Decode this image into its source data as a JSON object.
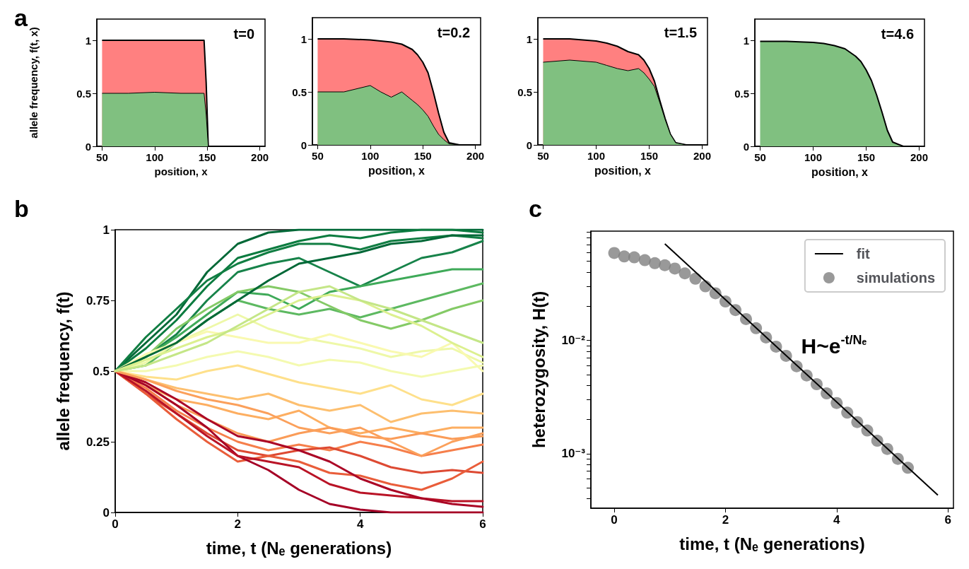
{
  "chart_data": [
    {
      "type": "area",
      "title": "t=0",
      "ylabel": "allele frequency, f(t, x)",
      "xlabel": "position, x",
      "annotations": [
        "a"
      ],
      "stacked": true,
      "xlim": [
        45,
        205
      ],
      "xticks": [
        50,
        100,
        150,
        200
      ],
      "ylim": [
        0,
        1.2
      ],
      "yticks": [
        0,
        0.5,
        1
      ],
      "x": [
        50,
        75,
        100,
        125,
        147,
        149,
        151,
        175,
        200
      ],
      "series": [
        {
          "color": "#80c080",
          "values": [
            0.5,
            0.5,
            0.51,
            0.5,
            0.5,
            0.3,
            0,
            0,
            0
          ]
        },
        {
          "color": "#ff8080",
          "values": [
            0.5,
            0.5,
            0.49,
            0.5,
            0.5,
            0.3,
            0,
            0,
            0
          ]
        }
      ]
    },
    {
      "type": "area",
      "title": "t=0.2",
      "xlabel": "position, x",
      "stacked": true,
      "xlim": [
        45,
        205
      ],
      "xticks": [
        50,
        100,
        150,
        200
      ],
      "ylim": [
        0,
        1.2
      ],
      "yticks": [
        0,
        0.5,
        1
      ],
      "x": [
        50,
        75,
        100,
        110,
        120,
        130,
        140,
        145,
        150,
        155,
        160,
        165,
        170,
        175,
        185,
        200
      ],
      "series": [
        {
          "color": "#80c080",
          "values": [
            0.5,
            0.5,
            0.56,
            0.5,
            0.45,
            0.5,
            0.42,
            0.38,
            0.33,
            0.27,
            0.18,
            0.1,
            0.05,
            0.01,
            0,
            0
          ]
        },
        {
          "color": "#ff8080",
          "values": [
            0.5,
            0.5,
            0.43,
            0.48,
            0.52,
            0.45,
            0.48,
            0.47,
            0.45,
            0.41,
            0.32,
            0.2,
            0.07,
            0.01,
            0,
            0
          ]
        }
      ]
    },
    {
      "type": "area",
      "title": "t=1.5",
      "xlabel": "position, x",
      "stacked": true,
      "xlim": [
        45,
        205
      ],
      "xticks": [
        50,
        100,
        150,
        200
      ],
      "ylim": [
        0,
        1.2
      ],
      "yticks": [
        0,
        0.5,
        1
      ],
      "x": [
        50,
        75,
        100,
        110,
        120,
        130,
        140,
        145,
        150,
        155,
        160,
        165,
        170,
        175,
        185,
        200
      ],
      "series": [
        {
          "color": "#80c080",
          "values": [
            0.78,
            0.8,
            0.78,
            0.75,
            0.72,
            0.7,
            0.72,
            0.68,
            0.62,
            0.55,
            0.4,
            0.24,
            0.1,
            0.02,
            0,
            0
          ]
        },
        {
          "color": "#ff8080",
          "values": [
            0.22,
            0.2,
            0.2,
            0.21,
            0.21,
            0.18,
            0.13,
            0.12,
            0.1,
            0.05,
            0.02,
            0.01,
            0,
            0,
            0,
            0
          ]
        }
      ]
    },
    {
      "type": "area",
      "title": "t=4.6",
      "xlabel": "position, x",
      "stacked": true,
      "xlim": [
        45,
        205
      ],
      "xticks": [
        50,
        100,
        150,
        200
      ],
      "ylim": [
        0,
        1.2
      ],
      "yticks": [
        0,
        0.5,
        1
      ],
      "x": [
        50,
        75,
        100,
        110,
        120,
        130,
        140,
        145,
        150,
        155,
        160,
        165,
        170,
        175,
        185,
        200
      ],
      "series": [
        {
          "color": "#80c080",
          "values": [
            0.99,
            0.99,
            0.98,
            0.97,
            0.95,
            0.92,
            0.85,
            0.8,
            0.72,
            0.62,
            0.48,
            0.32,
            0.15,
            0.04,
            0,
            0
          ]
        }
      ]
    },
    {
      "type": "line",
      "xlabel": "time, t (Nₑ generations)",
      "ylabel": "allele frequency, f(t)",
      "annotations": [
        "b"
      ],
      "xlim": [
        0,
        6
      ],
      "xticks": [
        0,
        2,
        4,
        6
      ],
      "ylim": [
        0,
        1
      ],
      "yticks": [
        0,
        0.25,
        0.5,
        0.75,
        1
      ],
      "x": [
        0,
        0.5,
        1,
        1.5,
        2,
        2.5,
        3,
        3.5,
        4,
        4.5,
        5,
        5.5,
        6
      ],
      "series": [
        {
          "color": "#006837",
          "values": [
            0.5,
            0.6,
            0.7,
            0.85,
            0.95,
            0.99,
            1,
            1,
            1,
            1,
            1,
            1,
            1
          ]
        },
        {
          "color": "#0a7b3f",
          "values": [
            0.5,
            0.58,
            0.68,
            0.8,
            0.9,
            0.93,
            0.96,
            0.98,
            0.97,
            0.99,
            1,
            1,
            0.99
          ]
        },
        {
          "color": "#117e43",
          "values": [
            0.5,
            0.62,
            0.72,
            0.82,
            0.88,
            0.92,
            0.95,
            0.95,
            0.93,
            0.96,
            0.97,
            0.98,
            0.97
          ]
        },
        {
          "color": "#17834a",
          "values": [
            0.5,
            0.55,
            0.63,
            0.75,
            0.85,
            0.88,
            0.9,
            0.85,
            0.8,
            0.85,
            0.9,
            0.92,
            0.96
          ]
        },
        {
          "color": "#3faa59",
          "values": [
            0.5,
            0.55,
            0.62,
            0.7,
            0.78,
            0.77,
            0.72,
            0.78,
            0.8,
            0.82,
            0.84,
            0.86,
            0.86
          ]
        },
        {
          "color": "#5db961",
          "values": [
            0.5,
            0.52,
            0.6,
            0.68,
            0.75,
            0.72,
            0.7,
            0.72,
            0.69,
            0.72,
            0.75,
            0.78,
            0.81
          ]
        },
        {
          "color": "#84ca66",
          "values": [
            0.5,
            0.55,
            0.65,
            0.72,
            0.78,
            0.8,
            0.78,
            0.73,
            0.68,
            0.65,
            0.68,
            0.72,
            0.75
          ]
        },
        {
          "color": "#eef8a8",
          "values": [
            0.5,
            0.53,
            0.6,
            0.65,
            0.7,
            0.65,
            0.62,
            0.6,
            0.58,
            0.55,
            0.57,
            0.58,
            0.53
          ]
        },
        {
          "color": "#f9f9b0",
          "values": [
            0.5,
            0.56,
            0.6,
            0.64,
            0.62,
            0.6,
            0.6,
            0.63,
            0.6,
            0.57,
            0.55,
            0.6,
            0.5
          ]
        },
        {
          "color": "#f4fab0",
          "values": [
            0.5,
            0.5,
            0.52,
            0.55,
            0.57,
            0.55,
            0.52,
            0.54,
            0.53,
            0.5,
            0.48,
            0.5,
            0.52
          ]
        },
        {
          "color": "#fee08b",
          "values": [
            0.5,
            0.48,
            0.47,
            0.5,
            0.52,
            0.49,
            0.46,
            0.44,
            0.42,
            0.45,
            0.4,
            0.38,
            0.42
          ]
        },
        {
          "color": "#fdbf6f",
          "values": [
            0.5,
            0.47,
            0.44,
            0.42,
            0.4,
            0.42,
            0.38,
            0.36,
            0.38,
            0.32,
            0.35,
            0.36,
            0.35
          ]
        },
        {
          "color": "#fdae61",
          "values": [
            0.5,
            0.45,
            0.4,
            0.38,
            0.35,
            0.33,
            0.36,
            0.3,
            0.28,
            0.3,
            0.28,
            0.3,
            0.3
          ]
        },
        {
          "color": "#fa9c58",
          "values": [
            0.5,
            0.45,
            0.38,
            0.33,
            0.28,
            0.25,
            0.28,
            0.3,
            0.27,
            0.26,
            0.28,
            0.26,
            0.27
          ]
        },
        {
          "color": "#f67f4b",
          "values": [
            0.5,
            0.44,
            0.36,
            0.3,
            0.25,
            0.22,
            0.24,
            0.22,
            0.25,
            0.23,
            0.2,
            0.22,
            0.24
          ]
        },
        {
          "color": "#dd4a33",
          "values": [
            0.5,
            0.42,
            0.35,
            0.28,
            0.22,
            0.2,
            0.22,
            0.23,
            0.2,
            0.16,
            0.14,
            0.15,
            0.14
          ]
        },
        {
          "color": "#e95d3a",
          "values": [
            0.5,
            0.42,
            0.33,
            0.25,
            0.18,
            0.2,
            0.18,
            0.14,
            0.13,
            0.1,
            0.08,
            0.12,
            0.18
          ]
        },
        {
          "color": "#a50026",
          "values": [
            0.5,
            0.45,
            0.38,
            0.3,
            0.2,
            0.15,
            0.08,
            0.03,
            0.01,
            0,
            0,
            0,
            0
          ]
        },
        {
          "color": "#b91326",
          "values": [
            0.5,
            0.43,
            0.35,
            0.27,
            0.2,
            0.18,
            0.16,
            0.1,
            0.07,
            0.06,
            0.05,
            0.04,
            0.04
          ]
        },
        {
          "color": "#ab0626",
          "values": [
            0.5,
            0.46,
            0.4,
            0.33,
            0.27,
            0.25,
            0.22,
            0.18,
            0.12,
            0.08,
            0.05,
            0.03,
            0.02
          ]
        },
        {
          "color": "#006837",
          "values": [
            0.5,
            0.55,
            0.6,
            0.68,
            0.75,
            0.82,
            0.88,
            0.9,
            0.92,
            0.95,
            0.96,
            0.98,
            0.98
          ]
        },
        {
          "color": "#dcf08f",
          "values": [
            0.5,
            0.54,
            0.58,
            0.62,
            0.65,
            0.7,
            0.75,
            0.77,
            0.75,
            0.7,
            0.66,
            0.6,
            0.55
          ]
        },
        {
          "color": "#fba05b",
          "values": [
            0.5,
            0.47,
            0.43,
            0.4,
            0.38,
            0.35,
            0.3,
            0.28,
            0.3,
            0.25,
            0.2,
            0.25,
            0.28
          ]
        },
        {
          "color": "#c4e687",
          "values": [
            0.5,
            0.52,
            0.56,
            0.6,
            0.66,
            0.72,
            0.78,
            0.8,
            0.75,
            0.72,
            0.68,
            0.64,
            0.6
          ]
        }
      ]
    },
    {
      "type": "scatter",
      "xlabel": "time, t (Nₑ generations)",
      "ylabel": "heterozygosity, H(t)",
      "annotations": [
        "c",
        "H~e$^{-t/Nₑ}$"
      ],
      "log": "y",
      "legend": "top right",
      "marker": "circle",
      "xlim": [
        -0.42,
        6.1
      ],
      "xticks": [
        0,
        2,
        4,
        6
      ],
      "ylim": [
        0.00033,
        0.092
      ],
      "yticks": [
        {
          "value": 0.0004,
          "label": null
        },
        {
          "value": 0.0005,
          "label": null
        },
        {
          "value": 0.0006,
          "label": null
        },
        {
          "value": 0.0007,
          "label": null
        },
        {
          "value": 0.0008,
          "label": null
        },
        {
          "value": 0.0009,
          "label": null
        },
        {
          "value": 0.001,
          "label": "10⁻³"
        },
        {
          "value": 0.002,
          "label": null
        },
        {
          "value": 0.003,
          "label": null
        },
        {
          "value": 0.004,
          "label": null
        },
        {
          "value": 0.005,
          "label": null
        },
        {
          "value": 0.006,
          "label": null
        },
        {
          "value": 0.007,
          "label": null
        },
        {
          "value": 0.008,
          "label": null
        },
        {
          "value": 0.009,
          "label": null
        },
        {
          "value": 0.01,
          "label": "10⁻²"
        },
        {
          "value": 0.02,
          "label": null
        },
        {
          "value": 0.03,
          "label": null
        },
        {
          "value": 0.04,
          "label": null
        },
        {
          "value": 0.05,
          "label": null
        },
        {
          "value": 0.06,
          "label": null
        },
        {
          "value": 0.07,
          "label": null
        },
        {
          "value": 0.08,
          "label": null
        },
        {
          "value": 0.09,
          "label": null
        }
      ],
      "series": [
        {
          "name": "fit",
          "type": "line",
          "marker": "none",
          "color": "#000000",
          "x": [
            0.91,
            5.82
          ],
          "values": [
            0.071,
            0.00043
          ]
        },
        {
          "name": "simulations",
          "type": "scatter",
          "color": "#808080",
          "x": [
            0,
            0.18,
            0.36,
            0.55,
            0.73,
            0.91,
            1.09,
            1.27,
            1.46,
            1.64,
            1.82,
            2.0,
            2.18,
            2.37,
            2.55,
            2.73,
            2.91,
            3.09,
            3.28,
            3.46,
            3.64,
            3.82,
            4.0,
            4.19,
            4.37,
            4.55,
            4.73,
            4.91,
            5.1,
            5.28
          ],
          "values": [
            0.059,
            0.055,
            0.054,
            0.051,
            0.048,
            0.046,
            0.043,
            0.039,
            0.035,
            0.03,
            0.026,
            0.022,
            0.0185,
            0.0154,
            0.0128,
            0.0106,
            0.0088,
            0.0073,
            0.0059,
            0.0049,
            0.0041,
            0.0034,
            0.0028,
            0.0023,
            0.0019,
            0.0016,
            0.0013,
            0.0011,
            0.0009,
            0.00075
          ]
        }
      ]
    }
  ]
}
